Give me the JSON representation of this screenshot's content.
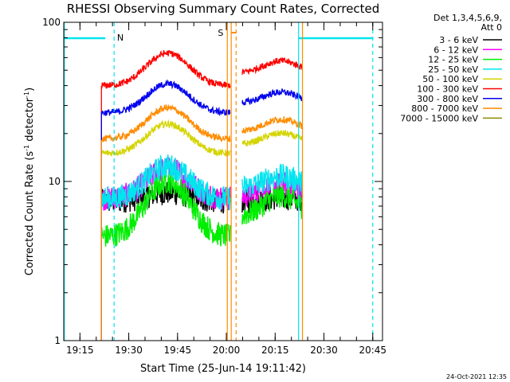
{
  "chart_data": {
    "type": "line",
    "title": "RHESSI Observing Summary Count Rates, Corrected",
    "xlabel": "Start Time (25-Jun-14 19:11:42)",
    "ylabel_main": "Corrected Count Rate (s",
    "ylabel_sup1": "-1",
    "ylabel_mid": " detector",
    "ylabel_sup2": "-1",
    "ylabel_end": ")",
    "y_scale": "log",
    "ylim": [
      1,
      100
    ],
    "xlim_minutes": [
      19.167,
      20.8
    ],
    "x_ticks": [
      {
        "label": "19:15",
        "t": 19.25
      },
      {
        "label": "19:30",
        "t": 19.5
      },
      {
        "label": "19:45",
        "t": 19.75
      },
      {
        "label": "20:00",
        "t": 20.0
      },
      {
        "label": "20:15",
        "t": 20.25
      },
      {
        "label": "20:30",
        "t": 20.5
      },
      {
        "label": "20:45",
        "t": 20.75
      }
    ],
    "y_ticks": [
      {
        "label": "1",
        "v": 1
      },
      {
        "label": "10",
        "v": 10
      },
      {
        "label": "100",
        "v": 100
      }
    ],
    "legend": {
      "header1": "Det 1,3,4,5,6,9,",
      "header2": "Att 0",
      "placement": "right"
    },
    "annotations": {
      "night_label": "N",
      "saa_label": "S",
      "night_color": "#00e5ee",
      "saa_color": "#ff8c00"
    },
    "data_start": 19.36,
    "data_end": 20.39,
    "gap": [
      20.02,
      20.08
    ],
    "series": [
      {
        "name": "3 - 6 keV",
        "color": "#000000",
        "level_before": 7.5,
        "peak": 8.5,
        "level_after": 7.5
      },
      {
        "name": "6 - 12 keV",
        "color": "#ff00ff",
        "level_before": 7.8,
        "peak": 12.0,
        "level_after": 8.0
      },
      {
        "name": "12 - 25 keV",
        "color": "#00ee00",
        "level_before": 4.5,
        "peak": 10.0,
        "level_after": 6.0
      },
      {
        "name": "25 - 50 keV",
        "color": "#00e5ee",
        "level_before": 7.8,
        "peak": 12.5,
        "level_after": 9.0
      },
      {
        "name": "50 - 100 keV",
        "color": "#d4d400",
        "level_before": 15.0,
        "peak": 23.0,
        "level_after": 17.0
      },
      {
        "name": "100 - 300 keV",
        "color": "#ff0000",
        "level_before": 40.0,
        "peak": 64.0,
        "level_after": 48.0
      },
      {
        "name": "300 - 800 keV",
        "color": "#0000ee",
        "level_before": 27.0,
        "peak": 41.0,
        "level_after": 31.0
      },
      {
        "name": "800 - 7000 keV",
        "color": "#ff8c00",
        "level_before": 18.5,
        "peak": 29.0,
        "level_after": 20.5
      },
      {
        "name": "7000 - 15000 keV",
        "color": "#8b8b00",
        "level_before": 0,
        "peak": 0,
        "level_after": 0
      }
    ]
  },
  "footer": {
    "date": "24-Oct-2021 12:35"
  }
}
